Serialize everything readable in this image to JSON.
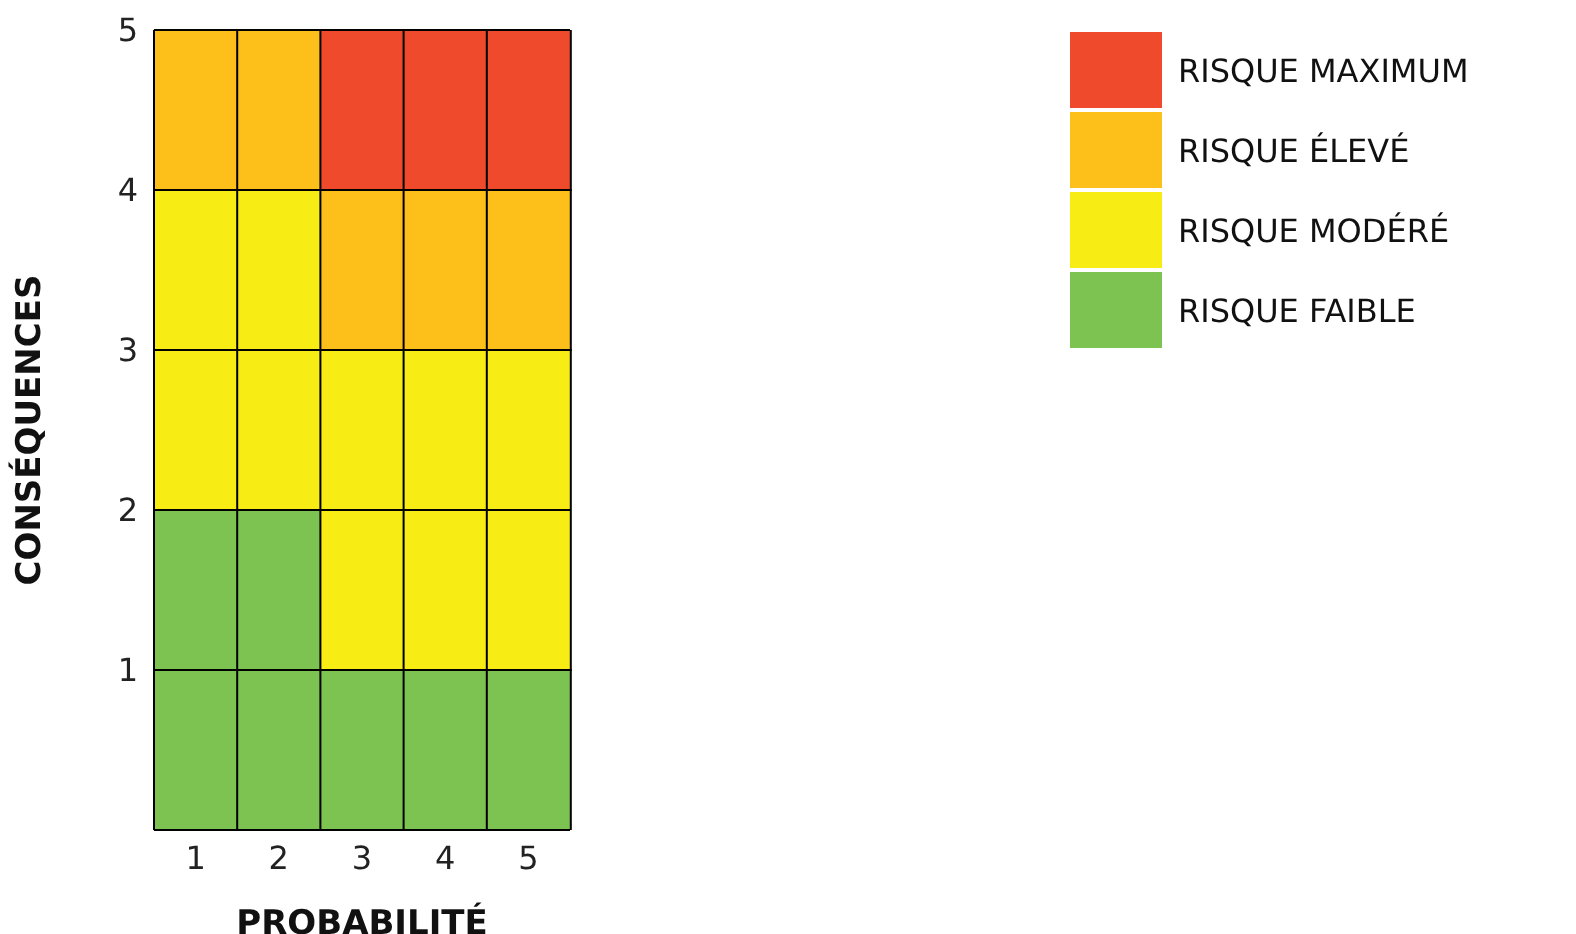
{
  "chart_data": {
    "type": "bar",
    "stacked": true,
    "xlabel": "PROBABILITÉ",
    "ylabel": "CONSÉQUENCES",
    "categories": [
      "1",
      "2",
      "3",
      "4",
      "5"
    ],
    "ylim": [
      0,
      5
    ],
    "yticks": [
      1,
      2,
      3,
      4,
      5
    ],
    "series": [
      {
        "name": "RISQUE FAIBLE",
        "color": "#7cc352",
        "values": [
          2,
          2,
          1,
          1,
          1
        ]
      },
      {
        "name": "RISQUE MODÉRÉ",
        "color": "#f7ec13",
        "values": [
          2,
          2,
          2,
          2,
          2
        ]
      },
      {
        "name": "RISQUE ÉLEVÉ",
        "color": "#fdbf1a",
        "values": [
          1,
          1,
          1,
          1,
          1
        ]
      },
      {
        "name": "RISQUE MAXIMUM",
        "color": "#ef4a2b",
        "values": [
          0,
          0,
          1,
          1,
          1
        ]
      }
    ],
    "grid": "y",
    "legend": "right"
  }
}
